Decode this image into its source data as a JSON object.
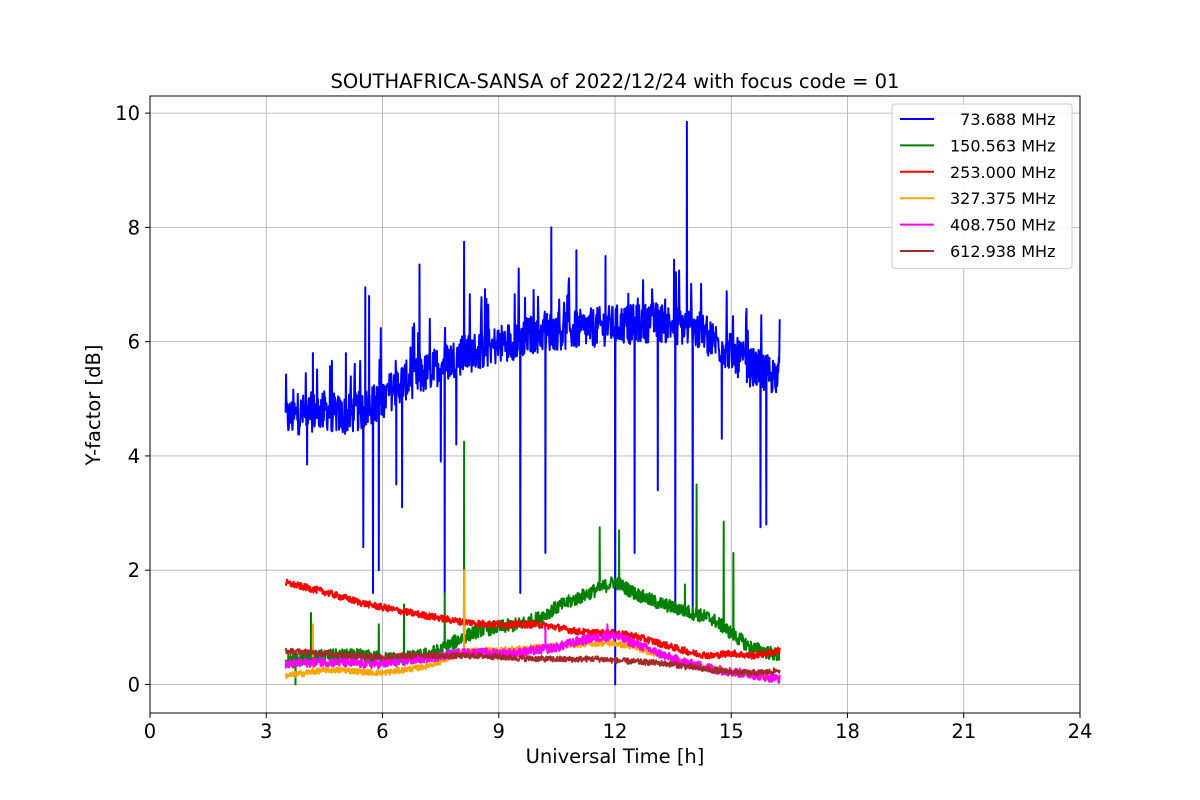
{
  "chart_data": {
    "type": "line",
    "title": "SOUTHAFRICA-SANSA of 2022/12/24 with focus code = 01",
    "xlabel": "Universal Time [h]",
    "ylabel": "Y-factor [dB]",
    "xlim": [
      0,
      24
    ],
    "ylim": [
      -0.5,
      10.3
    ],
    "xticks": [
      0,
      3,
      6,
      9,
      12,
      15,
      18,
      21,
      24
    ],
    "yticks": [
      0,
      2,
      4,
      6,
      8,
      10
    ],
    "grid": true,
    "legend_position": "top-right",
    "series": [
      {
        "name": "  73.688 MHz",
        "color": "#0000ff",
        "x": [
          3.5,
          4.0,
          4.5,
          5.0,
          5.5,
          6.0,
          6.5,
          7.0,
          7.5,
          8.0,
          8.5,
          9.0,
          9.5,
          10.0,
          10.5,
          11.0,
          11.5,
          12.0,
          12.5,
          13.0,
          13.5,
          14.0,
          14.5,
          15.0,
          15.5,
          16.0,
          16.25
        ],
        "y": [
          4.65,
          4.75,
          4.8,
          4.7,
          4.8,
          5.0,
          5.3,
          5.4,
          5.6,
          5.75,
          5.85,
          5.95,
          6.05,
          6.15,
          6.2,
          6.2,
          6.25,
          6.3,
          6.3,
          6.35,
          6.3,
          6.25,
          6.05,
          5.8,
          5.55,
          5.45,
          5.4
        ],
        "spikes": [
          {
            "x": 4.05,
            "y": 3.85
          },
          {
            "x": 4.2,
            "y": 5.8
          },
          {
            "x": 5.05,
            "y": 5.8
          },
          {
            "x": 5.5,
            "y": 2.4
          },
          {
            "x": 5.55,
            "y": 6.95
          },
          {
            "x": 5.65,
            "y": 6.8
          },
          {
            "x": 5.75,
            "y": 1.6
          },
          {
            "x": 5.9,
            "y": 2.0
          },
          {
            "x": 6.35,
            "y": 3.5
          },
          {
            "x": 6.5,
            "y": 3.1
          },
          {
            "x": 6.95,
            "y": 7.35
          },
          {
            "x": 7.5,
            "y": 3.9
          },
          {
            "x": 7.6,
            "y": 1.6
          },
          {
            "x": 7.9,
            "y": 4.2
          },
          {
            "x": 8.1,
            "y": 7.75
          },
          {
            "x": 9.55,
            "y": 1.6
          },
          {
            "x": 10.2,
            "y": 2.3
          },
          {
            "x": 10.35,
            "y": 8.0
          },
          {
            "x": 11.0,
            "y": 7.6
          },
          {
            "x": 11.75,
            "y": 7.5
          },
          {
            "x": 12.0,
            "y": 0.0
          },
          {
            "x": 12.5,
            "y": 2.3
          },
          {
            "x": 13.1,
            "y": 3.4
          },
          {
            "x": 13.55,
            "y": 1.4
          },
          {
            "x": 13.85,
            "y": 9.85
          },
          {
            "x": 14.0,
            "y": 1.2
          },
          {
            "x": 14.75,
            "y": 4.3
          },
          {
            "x": 15.75,
            "y": 2.75
          },
          {
            "x": 15.9,
            "y": 2.8
          }
        ]
      },
      {
        "name": "150.563 MHz",
        "color": "#008000",
        "x": [
          3.5,
          4.0,
          4.5,
          5.0,
          5.5,
          6.0,
          6.5,
          7.0,
          7.5,
          8.0,
          8.5,
          9.0,
          9.5,
          10.0,
          10.5,
          11.0,
          11.5,
          12.0,
          12.5,
          13.0,
          13.5,
          14.0,
          14.5,
          15.0,
          15.5,
          16.0,
          16.25
        ],
        "y": [
          0.4,
          0.45,
          0.5,
          0.5,
          0.5,
          0.45,
          0.45,
          0.5,
          0.6,
          0.8,
          0.95,
          1.0,
          1.05,
          1.15,
          1.35,
          1.5,
          1.65,
          1.8,
          1.6,
          1.45,
          1.35,
          1.25,
          1.15,
          0.9,
          0.65,
          0.55,
          0.5
        ],
        "spikes": [
          {
            "x": 3.75,
            "y": 0.0
          },
          {
            "x": 4.15,
            "y": 1.25
          },
          {
            "x": 5.9,
            "y": 1.05
          },
          {
            "x": 6.55,
            "y": 1.4
          },
          {
            "x": 7.6,
            "y": 1.6
          },
          {
            "x": 8.1,
            "y": 4.25
          },
          {
            "x": 11.6,
            "y": 2.75
          },
          {
            "x": 12.1,
            "y": 2.7
          },
          {
            "x": 13.8,
            "y": 1.75
          },
          {
            "x": 14.1,
            "y": 3.5
          },
          {
            "x": 14.8,
            "y": 2.85
          },
          {
            "x": 15.05,
            "y": 2.3
          }
        ]
      },
      {
        "name": "253.000 MHz",
        "color": "#ff0000",
        "x": [
          3.5,
          4.0,
          4.5,
          5.0,
          5.5,
          6.0,
          6.5,
          7.0,
          7.5,
          8.0,
          8.5,
          9.0,
          9.5,
          10.0,
          10.5,
          11.0,
          11.5,
          12.0,
          12.5,
          13.0,
          13.5,
          14.0,
          14.5,
          15.0,
          15.5,
          16.0,
          16.25
        ],
        "y": [
          1.78,
          1.7,
          1.62,
          1.52,
          1.42,
          1.35,
          1.28,
          1.22,
          1.16,
          1.1,
          1.07,
          1.05,
          1.05,
          1.05,
          1.0,
          0.93,
          0.9,
          0.9,
          0.85,
          0.75,
          0.65,
          0.55,
          0.5,
          0.55,
          0.5,
          0.55,
          0.6
        ],
        "spikes": []
      },
      {
        "name": "327.375 MHz",
        "color": "#ffa500",
        "x": [
          3.5,
          4.0,
          4.5,
          5.0,
          5.5,
          6.0,
          6.5,
          7.0,
          7.5,
          8.0,
          8.5,
          9.0,
          9.5,
          10.0,
          10.5,
          11.0,
          11.5,
          12.0,
          12.5,
          13.0,
          13.5,
          14.0,
          14.5,
          15.0,
          15.5,
          16.0,
          16.25
        ],
        "y": [
          0.15,
          0.2,
          0.25,
          0.25,
          0.22,
          0.2,
          0.25,
          0.3,
          0.4,
          0.55,
          0.6,
          0.6,
          0.62,
          0.65,
          0.68,
          0.7,
          0.72,
          0.72,
          0.65,
          0.55,
          0.45,
          0.35,
          0.28,
          0.22,
          0.18,
          0.12,
          0.1
        ],
        "spikes": [
          {
            "x": 4.2,
            "y": 1.05
          },
          {
            "x": 8.1,
            "y": 2.0
          }
        ]
      },
      {
        "name": "408.750 MHz",
        "color": "#ff00ff",
        "x": [
          3.5,
          4.0,
          4.5,
          5.0,
          5.5,
          6.0,
          6.5,
          7.0,
          7.5,
          8.0,
          8.5,
          9.0,
          9.5,
          10.0,
          10.5,
          11.0,
          11.5,
          12.0,
          12.5,
          13.0,
          13.5,
          14.0,
          14.5,
          15.0,
          15.5,
          16.0,
          16.25
        ],
        "y": [
          0.35,
          0.38,
          0.4,
          0.38,
          0.36,
          0.36,
          0.4,
          0.45,
          0.5,
          0.55,
          0.55,
          0.55,
          0.55,
          0.6,
          0.65,
          0.75,
          0.82,
          0.85,
          0.72,
          0.58,
          0.45,
          0.35,
          0.28,
          0.22,
          0.18,
          0.12,
          0.1
        ],
        "spikes": [
          {
            "x": 10.2,
            "y": 1.0
          },
          {
            "x": 11.8,
            "y": 1.05
          }
        ]
      },
      {
        "name": "612.938 MHz",
        "color": "#a52a2a",
        "x": [
          3.5,
          4.0,
          4.5,
          5.0,
          5.5,
          6.0,
          6.5,
          7.0,
          7.5,
          8.0,
          8.5,
          9.0,
          9.5,
          10.0,
          10.5,
          11.0,
          11.5,
          12.0,
          12.5,
          13.0,
          13.5,
          14.0,
          14.5,
          15.0,
          15.5,
          16.0,
          16.25
        ],
        "y": [
          0.58,
          0.57,
          0.55,
          0.52,
          0.5,
          0.48,
          0.5,
          0.52,
          0.5,
          0.5,
          0.5,
          0.48,
          0.46,
          0.45,
          0.44,
          0.44,
          0.45,
          0.42,
          0.4,
          0.38,
          0.35,
          0.3,
          0.25,
          0.22,
          0.2,
          0.22,
          0.25
        ],
        "spikes": []
      }
    ]
  }
}
